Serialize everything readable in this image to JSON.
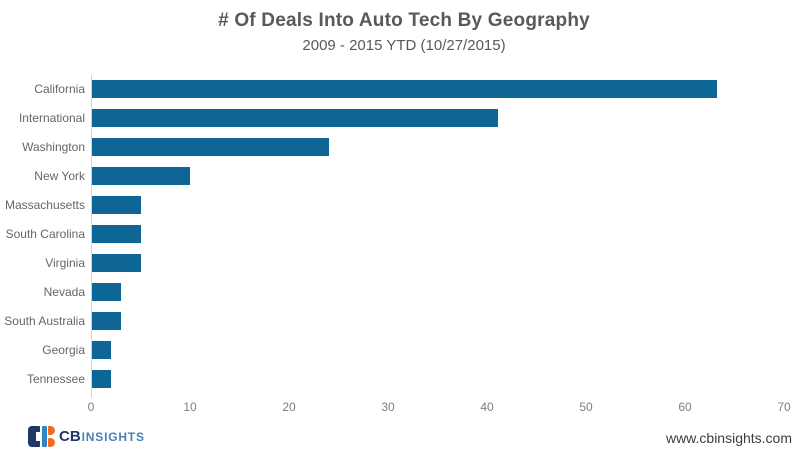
{
  "chart_data": {
    "type": "bar",
    "orientation": "horizontal",
    "title": "# Of Deals Into Auto Tech By Geography",
    "subtitle": "2009 - 2015 YTD (10/27/2015)",
    "categories": [
      "California",
      "International",
      "Washington",
      "New York",
      "Massachusetts",
      "South Carolina",
      "Virginia",
      "Nevada",
      "South Australia",
      "Georgia",
      "Tennessee"
    ],
    "values": [
      63,
      41,
      24,
      10,
      5,
      5,
      5,
      3,
      3,
      2,
      2
    ],
    "xlabel": "",
    "ylabel": "",
    "xlim": [
      0,
      70
    ],
    "x_ticks": [
      0,
      10,
      20,
      30,
      40,
      50,
      60,
      70
    ],
    "grid": false,
    "legend": false,
    "bar_color": "#0e6697",
    "axis_line_color": "#d3d3d3"
  },
  "footer": {
    "logo_cb": "CB",
    "logo_insights": "INSIGHTS",
    "website": "www.cbinsights.com",
    "colors": {
      "navy": "#1f3864",
      "blue": "#2e86c5",
      "orange": "#f26a21",
      "insights_text": "#4a7eb5"
    }
  }
}
